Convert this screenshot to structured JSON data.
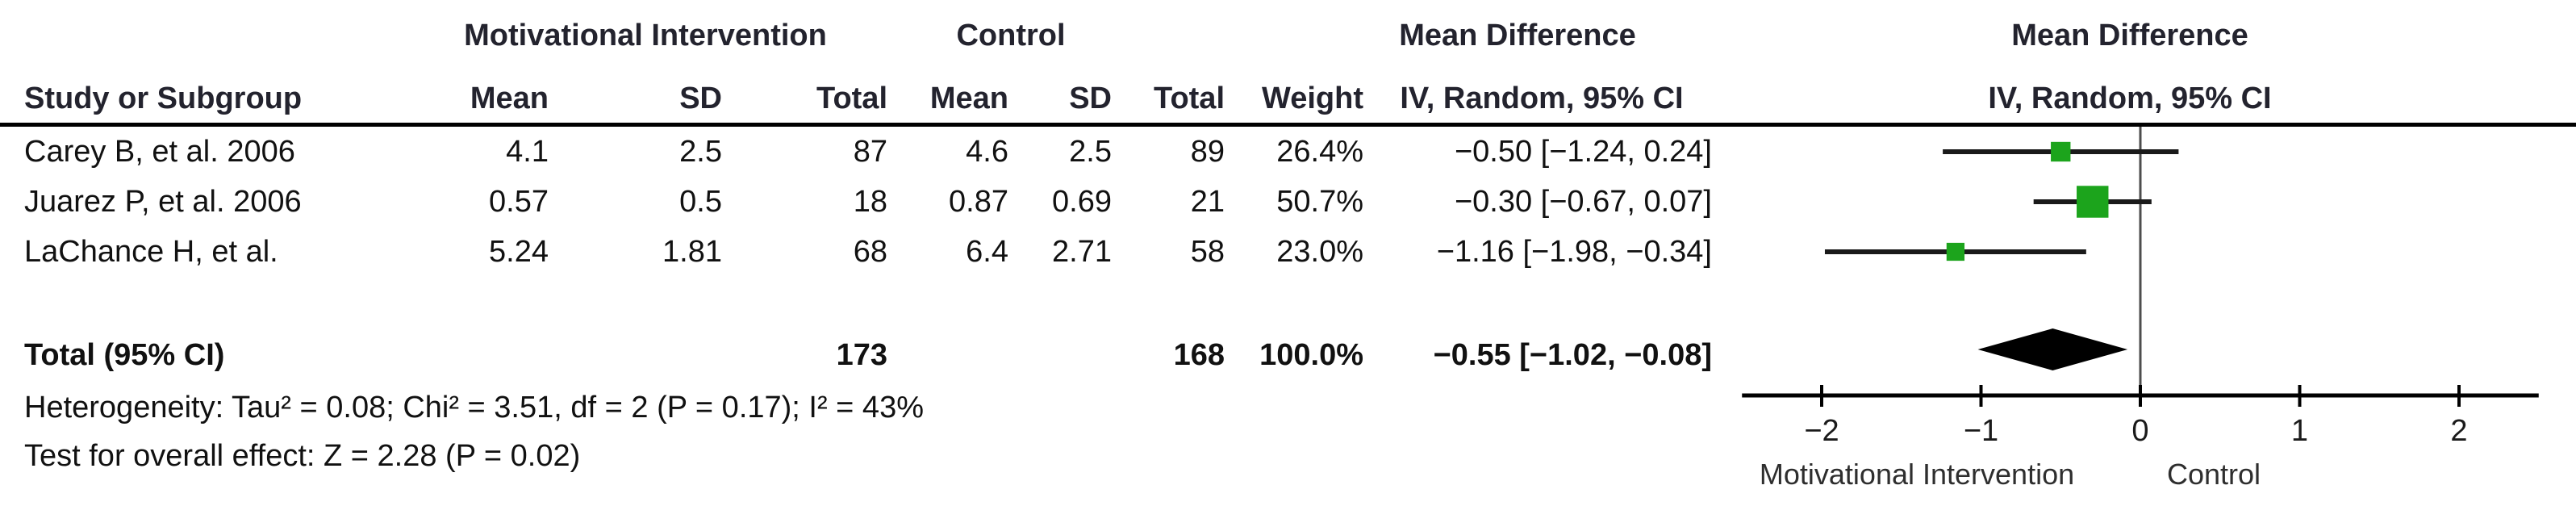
{
  "header": {
    "study_col": "Study or Subgroup",
    "experimental_group": "Motivational Intervention",
    "control_group": "Control",
    "mean": "Mean",
    "sd": "SD",
    "total": "Total",
    "weight": "Weight",
    "effect_title": "Mean Difference",
    "effect_method": "IV, Random, 95% CI"
  },
  "footnotes": {
    "heterogeneity": "Heterogeneity: Tau² = 0.08; Chi² = 3.51, df = 2 (P = 0.17); I² = 43%",
    "overall_effect": "Test for overall effect: Z = 2.28 (P = 0.02)"
  },
  "colors": {
    "square": "#1CA41C",
    "marks": "#1a1a1a",
    "zero_line": "#4d4d4d"
  },
  "chart_data": {
    "type": "forest",
    "effect_measure": "Mean Difference",
    "model": "IV, Random, 95% CI",
    "studies": [
      {
        "label": "Carey B, et al. 2006",
        "mean_e": "4.1",
        "sd_e": "2.5",
        "total_e": "87",
        "mean_c": "4.6",
        "sd_c": "2.5",
        "total_c": "89",
        "weight": "26.4%",
        "weight_value": 26.4,
        "ci_label": "−0.50 [−1.24, 0.24]",
        "md": -0.5,
        "low": -1.24,
        "high": 0.24
      },
      {
        "label": "Juarez P, et al. 2006",
        "mean_e": "0.57",
        "sd_e": "0.5",
        "total_e": "18",
        "mean_c": "0.87",
        "sd_c": "0.69",
        "total_c": "21",
        "weight": "50.7%",
        "weight_value": 50.7,
        "ci_label": "−0.30 [−0.67, 0.07]",
        "md": -0.3,
        "low": -0.67,
        "high": 0.07
      },
      {
        "label": "LaChance H, et al.",
        "mean_e": "5.24",
        "sd_e": "1.81",
        "total_e": "68",
        "mean_c": "6.4",
        "sd_c": "2.71",
        "total_c": "58",
        "weight": "23.0%",
        "weight_value": 23.0,
        "ci_label": "−1.16 [−1.98, −0.34]",
        "md": -1.16,
        "low": -1.98,
        "high": -0.34
      }
    ],
    "total": {
      "label": "Total (95% CI)",
      "total_e": "173",
      "total_c": "168",
      "weight": "100.0%",
      "weight_value": 100.0,
      "ci_label": "−0.55 [−1.02, −0.08]",
      "md": -0.55,
      "low": -1.02,
      "high": -0.08
    },
    "axis": {
      "ticks": [
        -2,
        -1,
        0,
        1,
        2
      ],
      "xmin": -2.5,
      "xmax": 2.5,
      "favours_left": "Motivational Intervention",
      "favours_right": "Control",
      "grid": false
    }
  }
}
